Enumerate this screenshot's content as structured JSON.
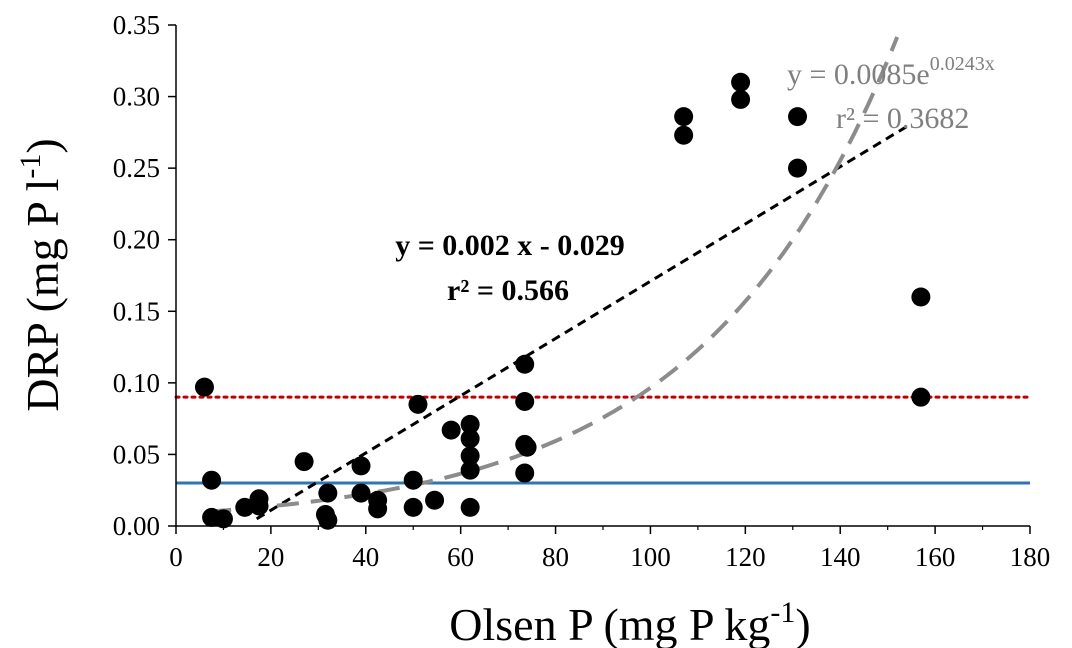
{
  "chart_data": {
    "type": "scatter",
    "xlabel": "Olsen P (mg P kg",
    "xlabel_sup": "-1",
    "xlabel_end": ")",
    "ylabel": "DRP (mg P l",
    "ylabel_sup": "-1",
    "ylabel_end": ")",
    "xlim": [
      0,
      180
    ],
    "ylim": [
      0,
      0.35
    ],
    "xticks": [
      0,
      20,
      40,
      60,
      80,
      100,
      120,
      140,
      160,
      180
    ],
    "yticks": [
      0.0,
      0.05,
      0.1,
      0.15,
      0.2,
      0.25,
      0.3,
      0.35
    ],
    "xtick_labels": [
      "0",
      "20",
      "40",
      "60",
      "80",
      "100",
      "120",
      "140",
      "160",
      "180"
    ],
    "ytick_labels": [
      "0.00",
      "0.05",
      "0.10",
      "0.15",
      "0.20",
      "0.25",
      "0.30",
      "0.35"
    ],
    "grid": false,
    "points": [
      {
        "x": 6,
        "y": 0.097
      },
      {
        "x": 7.5,
        "y": 0.032
      },
      {
        "x": 7.5,
        "y": 0.006
      },
      {
        "x": 10,
        "y": 0.005
      },
      {
        "x": 14.5,
        "y": 0.013
      },
      {
        "x": 17.5,
        "y": 0.019
      },
      {
        "x": 17.5,
        "y": 0.014
      },
      {
        "x": 27,
        "y": 0.045
      },
      {
        "x": 31.5,
        "y": 0.008
      },
      {
        "x": 32,
        "y": 0.004
      },
      {
        "x": 32,
        "y": 0.023
      },
      {
        "x": 39,
        "y": 0.042
      },
      {
        "x": 39,
        "y": 0.023
      },
      {
        "x": 42.5,
        "y": 0.018
      },
      {
        "x": 42.5,
        "y": 0.012
      },
      {
        "x": 50,
        "y": 0.032
      },
      {
        "x": 50,
        "y": 0.013
      },
      {
        "x": 51,
        "y": 0.085
      },
      {
        "x": 54.5,
        "y": 0.018
      },
      {
        "x": 58,
        "y": 0.067
      },
      {
        "x": 62,
        "y": 0.071
      },
      {
        "x": 62,
        "y": 0.061
      },
      {
        "x": 62,
        "y": 0.049
      },
      {
        "x": 62,
        "y": 0.039
      },
      {
        "x": 62,
        "y": 0.013
      },
      {
        "x": 73.5,
        "y": 0.113
      },
      {
        "x": 73.5,
        "y": 0.087
      },
      {
        "x": 73.5,
        "y": 0.057
      },
      {
        "x": 73.5,
        "y": 0.037
      },
      {
        "x": 74,
        "y": 0.055
      },
      {
        "x": 107,
        "y": 0.286
      },
      {
        "x": 107,
        "y": 0.273
      },
      {
        "x": 119,
        "y": 0.31
      },
      {
        "x": 119,
        "y": 0.298
      },
      {
        "x": 131,
        "y": 0.286
      },
      {
        "x": 131,
        "y": 0.25
      },
      {
        "x": 157,
        "y": 0.16
      },
      {
        "x": 157,
        "y": 0.09
      }
    ],
    "linear_fit": {
      "slope": 0.002,
      "intercept": -0.029,
      "x_range": [
        17,
        154
      ],
      "color": "#000000"
    },
    "exp_fit": {
      "a": 0.0085,
      "b": 0.0243,
      "x_range": [
        7,
        152
      ],
      "color": "#8c8c8c"
    },
    "reference_lines": [
      {
        "y": 0.09,
        "color": "#c00000",
        "style": "dotted"
      },
      {
        "y": 0.03,
        "color": "#2e75b6",
        "style": "solid"
      }
    ],
    "annotations": {
      "linear_eq": "y = 0.002 x - 0.029",
      "linear_r2": "r² = 0.566",
      "exp_eq_base": "y = 0.0085e",
      "exp_eq_sup": "0.0243x",
      "exp_r2": "r² = 0.3682"
    },
    "colors": {
      "points": "#000000",
      "linear_fit": "#000000",
      "exp_fit": "#8c8c8c",
      "threshold_high": "#c00000",
      "threshold_low": "#2e75b6"
    }
  }
}
